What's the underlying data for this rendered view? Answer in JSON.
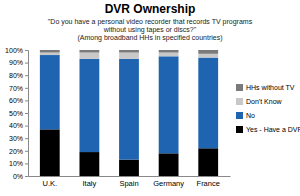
{
  "chart_data": {
    "type": "bar",
    "title": "DVR Ownership",
    "subtitle": [
      "\"Do you have a personal video recorder that records TV programs",
      "without using tapes or discs?\"",
      "(Among broadband HHs in specified countries)"
    ],
    "categories": [
      "U.K.",
      "Italy",
      "Spain",
      "Germany",
      "France"
    ],
    "series": [
      {
        "name": "Yes - Have a DVR",
        "color": "#000000",
        "values": [
          37,
          19,
          13,
          18,
          22
        ]
      },
      {
        "name": "No",
        "color": "#1f64b0",
        "values": [
          59,
          74,
          80,
          77,
          72
        ]
      },
      {
        "name": "Don't Know",
        "color": "#c8c8c8",
        "values": [
          2,
          5,
          5,
          3,
          3
        ]
      },
      {
        "name": "HHs without TV",
        "color": "#7a7a7a",
        "values": [
          2,
          2,
          2,
          2,
          3
        ]
      }
    ],
    "stacked": true,
    "ylim": [
      0,
      100
    ],
    "yticks": [
      {
        "value": 0,
        "label": "0%"
      },
      {
        "value": 10,
        "label": "10%"
      },
      {
        "value": 20,
        "label": "20%"
      },
      {
        "value": 30,
        "label": "30%"
      },
      {
        "value": 40,
        "label": "40%"
      },
      {
        "value": 50,
        "label": "50%"
      },
      {
        "value": 60,
        "label": "60%"
      },
      {
        "value": 70,
        "label": "70%"
      },
      {
        "value": 80,
        "label": "80%"
      },
      {
        "value": 90,
        "label": "90%"
      },
      {
        "value": 100,
        "label": "100%"
      }
    ],
    "grid": false,
    "legend": "right"
  }
}
